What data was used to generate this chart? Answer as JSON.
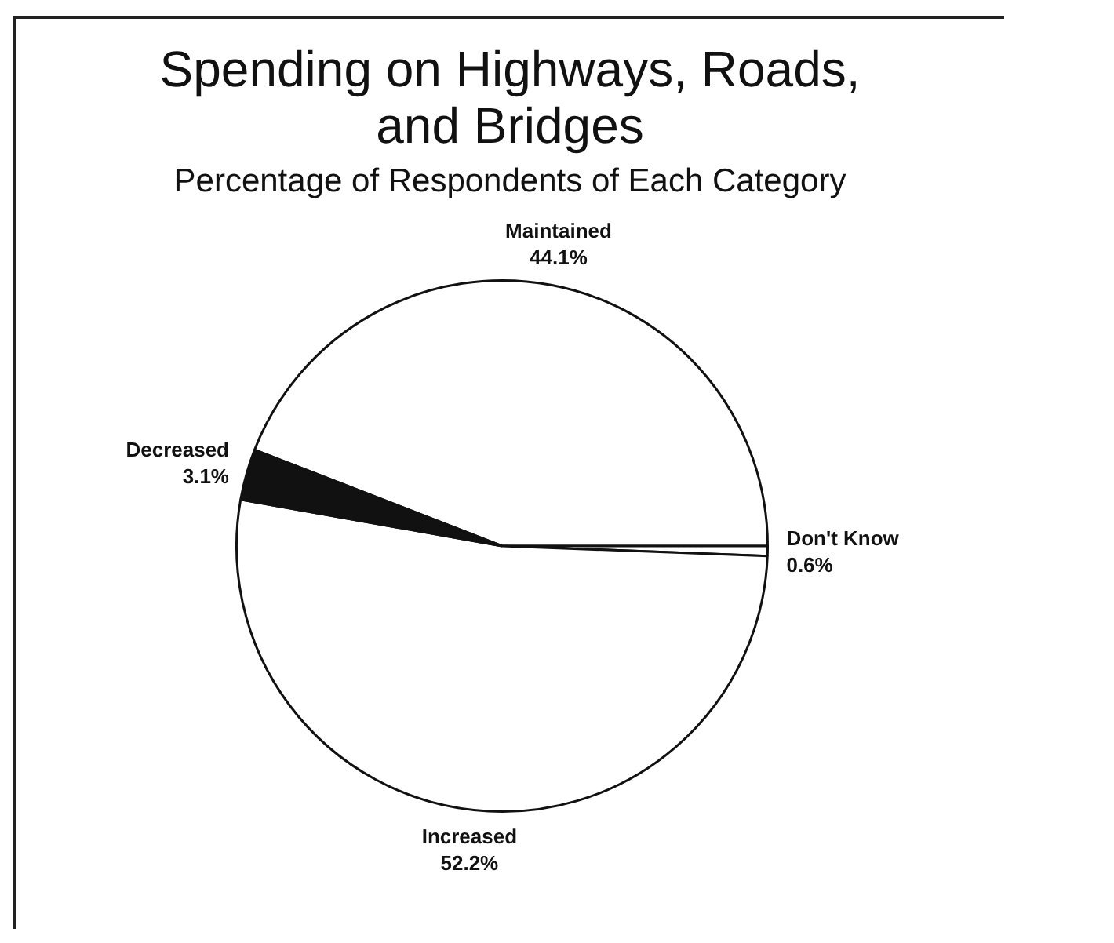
{
  "chart_data": {
    "type": "pie",
    "title": "Spending on Highways, Roads, and Bridges",
    "subtitle": "Percentage of Respondents of Each Category",
    "categories": [
      "Maintained",
      "Don't Know",
      "Increased",
      "Decreased"
    ],
    "values": [
      44.1,
      0.6,
      52.2,
      3.1
    ],
    "colors": [
      "#ffffff",
      "#ffffff",
      "#ffffff",
      "#111111"
    ],
    "value_labels": [
      "44.1%",
      "0.6%",
      "52.2%",
      "3.1%"
    ],
    "legend": false
  }
}
